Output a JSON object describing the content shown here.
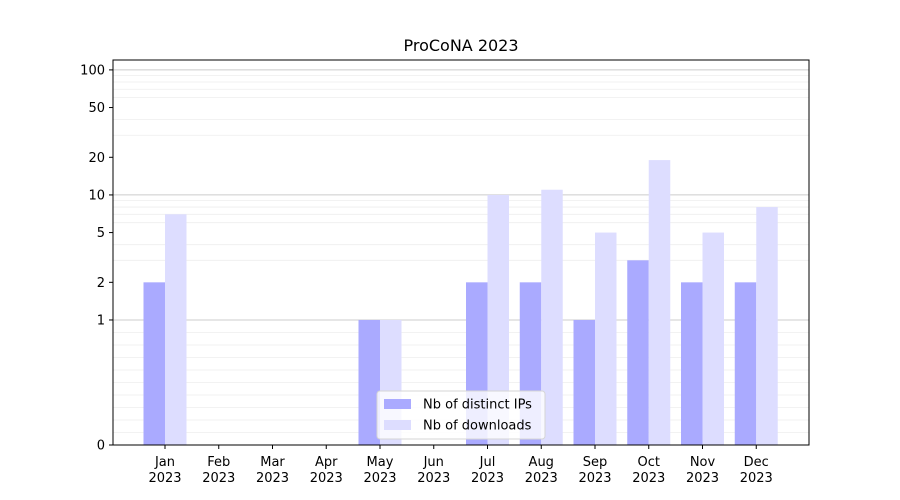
{
  "chart_data": {
    "type": "bar",
    "title": "ProCoNA 2023",
    "xlabel": "",
    "ylabel": "",
    "yscale": "symlog",
    "ylim": [
      0,
      120
    ],
    "yticks": [
      0,
      1,
      2,
      5,
      10,
      20,
      50,
      100
    ],
    "categories": [
      [
        "Jan",
        "2023"
      ],
      [
        "Feb",
        "2023"
      ],
      [
        "Mar",
        "2023"
      ],
      [
        "Apr",
        "2023"
      ],
      [
        "May",
        "2023"
      ],
      [
        "Jun",
        "2023"
      ],
      [
        "Jul",
        "2023"
      ],
      [
        "Aug",
        "2023"
      ],
      [
        "Sep",
        "2023"
      ],
      [
        "Oct",
        "2023"
      ],
      [
        "Nov",
        "2023"
      ],
      [
        "Dec",
        "2023"
      ]
    ],
    "series": [
      {
        "name": "Nb of distinct IPs",
        "color": "#aaaaff",
        "values": [
          2,
          0,
          0,
          0,
          1,
          0,
          2,
          2,
          1,
          3,
          2,
          2
        ]
      },
      {
        "name": "Nb of downloads",
        "color": "#ddddff",
        "values": [
          7,
          0,
          0,
          0,
          1,
          0,
          10,
          11,
          5,
          19,
          5,
          8
        ]
      }
    ],
    "grid": true,
    "legend_position": "lower center"
  }
}
